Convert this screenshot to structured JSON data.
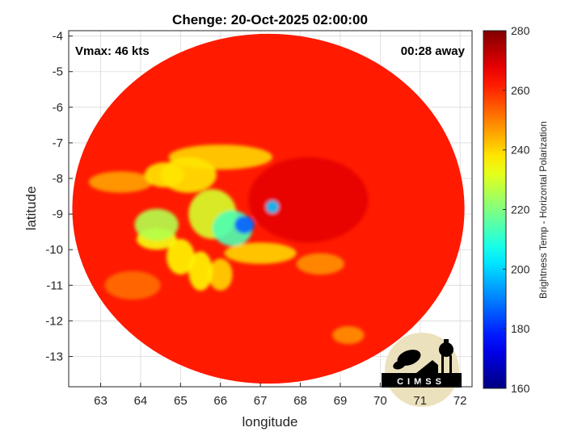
{
  "chart_data": {
    "type": "heatmap",
    "title": "Chenge: 20-Oct-2025 02:00:00",
    "xlabel": "longitude",
    "ylabel": "latitude",
    "xlim": [
      62.2,
      72.3
    ],
    "ylim": [
      -13.85,
      -3.85
    ],
    "xticks": [
      63,
      64,
      65,
      66,
      67,
      68,
      69,
      70,
      71,
      72
    ],
    "yticks": [
      -4,
      -5,
      -6,
      -7,
      -8,
      -9,
      -10,
      -11,
      -12,
      -13
    ],
    "grid": true,
    "annotations": {
      "vmax": "Vmax: 46 kts",
      "time_away": "00:28 away"
    },
    "colorbar": {
      "label": "Brightness Temp - Horizontal Polarization",
      "min": 160,
      "max": 280,
      "ticks": [
        160,
        180,
        200,
        220,
        240,
        260,
        280
      ],
      "colormap": "jet",
      "placement": "right"
    },
    "swath": {
      "center_lon": 67.2,
      "center_lat": -8.85,
      "radius_lon": 4.9,
      "radius_lat": 4.9,
      "background_value": 262
    },
    "cyclone_center": {
      "lon": 67.8,
      "lat": -8.6
    },
    "features": [
      {
        "lon": 68.2,
        "lat": -8.6,
        "value": 268,
        "spread_lon": 1.5,
        "spread_lat": 1.2
      },
      {
        "lon": 66.0,
        "lat": -7.4,
        "value": 240,
        "spread_lon": 1.3,
        "spread_lat": 0.35
      },
      {
        "lon": 65.2,
        "lat": -7.9,
        "value": 238,
        "spread_lon": 0.7,
        "spread_lat": 0.5
      },
      {
        "lon": 64.6,
        "lat": -7.9,
        "value": 238,
        "spread_lon": 0.5,
        "spread_lat": 0.35
      },
      {
        "lon": 63.5,
        "lat": -8.1,
        "value": 246,
        "spread_lon": 0.8,
        "spread_lat": 0.3
      },
      {
        "lon": 64.4,
        "lat": -9.3,
        "value": 226,
        "spread_lon": 0.55,
        "spread_lat": 0.45
      },
      {
        "lon": 64.4,
        "lat": -9.7,
        "value": 234,
        "spread_lon": 0.5,
        "spread_lat": 0.3
      },
      {
        "lon": 65.8,
        "lat": -9.0,
        "value": 230,
        "spread_lon": 0.6,
        "spread_lat": 0.7
      },
      {
        "lon": 66.3,
        "lat": -9.4,
        "value": 214,
        "spread_lon": 0.5,
        "spread_lat": 0.5
      },
      {
        "lon": 66.6,
        "lat": -9.3,
        "value": 186,
        "spread_lon": 0.25,
        "spread_lat": 0.25
      },
      {
        "lon": 67.3,
        "lat": -8.8,
        "value": 198,
        "spread_lon": 0.16,
        "spread_lat": 0.18
      },
      {
        "lon": 67.0,
        "lat": -10.1,
        "value": 240,
        "spread_lon": 0.9,
        "spread_lat": 0.3
      },
      {
        "lon": 65.5,
        "lat": -10.6,
        "value": 236,
        "spread_lon": 0.3,
        "spread_lat": 0.55
      },
      {
        "lon": 66.0,
        "lat": -10.7,
        "value": 240,
        "spread_lon": 0.3,
        "spread_lat": 0.45
      },
      {
        "lon": 65.0,
        "lat": -10.2,
        "value": 236,
        "spread_lon": 0.35,
        "spread_lat": 0.5
      },
      {
        "lon": 68.5,
        "lat": -10.4,
        "value": 248,
        "spread_lon": 0.6,
        "spread_lat": 0.3
      },
      {
        "lon": 69.2,
        "lat": -12.4,
        "value": 248,
        "spread_lon": 0.4,
        "spread_lat": 0.25
      },
      {
        "lon": 63.8,
        "lat": -11.0,
        "value": 252,
        "spread_lon": 0.7,
        "spread_lat": 0.4
      }
    ]
  },
  "logo": {
    "text": "CIMSS"
  }
}
